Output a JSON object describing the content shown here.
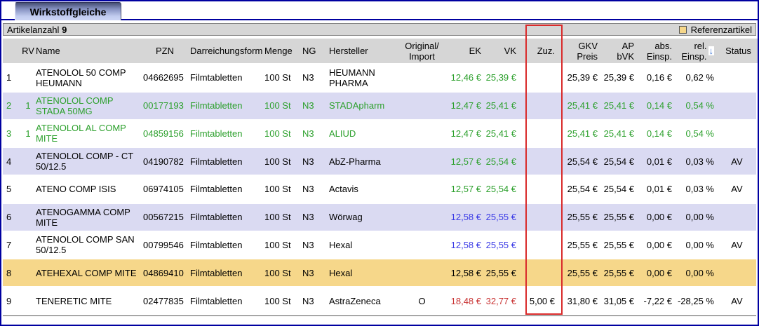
{
  "tab": {
    "label": "Wirkstoffgleiche"
  },
  "info_bar": {
    "article_count_label": "Artikelanzahl",
    "article_count": "9",
    "legend_label": "Referenzartikel",
    "legend_color": "#f6d78a"
  },
  "annotation": {
    "highlighted_column": "Zuz.",
    "color": "#d92b2b"
  },
  "colors": {
    "row_alt": "#dadaf2",
    "reference_row": "#f6d78a",
    "header_text": "#3a74d8",
    "green_text": "#2ca02c",
    "blue_text": "#3a3ae6",
    "red_text": "#c93434",
    "window_border": "#0000a0",
    "bar_bg": "#d6d6d6"
  },
  "table": {
    "columns": [
      {
        "key": "num",
        "label": "",
        "align": "al"
      },
      {
        "key": "rv",
        "label": "RV",
        "align": "ac"
      },
      {
        "key": "name",
        "label": "Name",
        "align": "al"
      },
      {
        "key": "pzn",
        "label": "PZN",
        "align": "ac"
      },
      {
        "key": "form",
        "label": "Darreichungsform",
        "align": "al"
      },
      {
        "key": "menge",
        "label": "Menge",
        "align": "al"
      },
      {
        "key": "ng",
        "label": "NG",
        "align": "al"
      },
      {
        "key": "hersteller",
        "label": "Hersteller",
        "align": "al"
      },
      {
        "key": "orig",
        "label": "Original/\nImport",
        "align": "ac"
      },
      {
        "key": "ek",
        "label": "EK",
        "align": "ar"
      },
      {
        "key": "vk",
        "label": "VK",
        "align": "ar"
      },
      {
        "key": "zuz",
        "label": "Zuz.",
        "align": "ar"
      },
      {
        "key": "gkv",
        "label": "GKV\nPreis",
        "align": "ar"
      },
      {
        "key": "ap",
        "label": "AP\nbVK",
        "align": "ar"
      },
      {
        "key": "abs",
        "label": "abs.\nEinsp.",
        "align": "ar"
      },
      {
        "key": "rel",
        "label": "rel.\nEinsp.",
        "align": "ar",
        "sort_indicator": "↓"
      },
      {
        "key": "status",
        "label": "Status",
        "align": "ac"
      }
    ],
    "data_align": {
      "num": "al pl5",
      "rv": "ac",
      "name": "al",
      "pzn": "al pl5",
      "form": "al",
      "menge": "al",
      "ng": "al",
      "hersteller": "al",
      "orig": "ac",
      "ek": "ar",
      "vk": "ar",
      "zuz": "ar",
      "gkv": "ar",
      "ap": "ar",
      "abs": "ar",
      "rel": "ar",
      "status": "ac"
    },
    "rows": [
      {
        "num": "1",
        "rv": "",
        "name": "ATENOLOL 50 COMP HEUMANN",
        "pzn": "04662695",
        "form": "Filmtabletten",
        "menge": "100 St",
        "ng": "N3",
        "hersteller": "HEUMANN PHARMA",
        "orig": "",
        "ek": "12,46 €",
        "vk": "25,39 €",
        "zuz": "",
        "gkv": "25,39 €",
        "ap": "25,39 €",
        "abs": "0,16 €",
        "rel": "0,62 %",
        "status": "",
        "bg": "white",
        "text_color": "black",
        "price_color": "green"
      },
      {
        "num": "2",
        "rv": "1",
        "name": "ATENOLOL COMP STADA 50MG",
        "pzn": "00177193",
        "form": "Filmtabletten",
        "menge": "100 St",
        "ng": "N3",
        "hersteller": "STADApharm",
        "orig": "",
        "ek": "12,47 €",
        "vk": "25,41 €",
        "zuz": "",
        "gkv": "25,41 €",
        "ap": "25,41 €",
        "abs": "0,14 €",
        "rel": "0,54 %",
        "status": "",
        "bg": "lavender",
        "text_color": "green",
        "price_color": "green"
      },
      {
        "num": "3",
        "rv": "1",
        "name": "ATENOLOL AL COMP MITE",
        "pzn": "04859156",
        "form": "Filmtabletten",
        "menge": "100 St",
        "ng": "N3",
        "hersteller": "ALIUD",
        "orig": "",
        "ek": "12,47 €",
        "vk": "25,41 €",
        "zuz": "",
        "gkv": "25,41 €",
        "ap": "25,41 €",
        "abs": "0,14 €",
        "rel": "0,54 %",
        "status": "",
        "bg": "white",
        "text_color": "green",
        "price_color": "green"
      },
      {
        "num": "4",
        "rv": "",
        "name": "ATENOLOL COMP - CT 50/12.5",
        "pzn": "04190782",
        "form": "Filmtabletten",
        "menge": "100 St",
        "ng": "N3",
        "hersteller": "AbZ-Pharma",
        "orig": "",
        "ek": "12,57 €",
        "vk": "25,54 €",
        "zuz": "",
        "gkv": "25,54 €",
        "ap": "25,54 €",
        "abs": "0,01 €",
        "rel": "0,03 %",
        "status": "AV",
        "bg": "lavender",
        "text_color": "black",
        "price_color": "green"
      },
      {
        "num": "5",
        "rv": "",
        "name": "ATENO COMP ISIS",
        "pzn": "06974105",
        "form": "Filmtabletten",
        "menge": "100 St",
        "ng": "N3",
        "hersteller": "Actavis",
        "orig": "",
        "ek": "12,57 €",
        "vk": "25,54 €",
        "zuz": "",
        "gkv": "25,54 €",
        "ap": "25,54 €",
        "abs": "0,01 €",
        "rel": "0,03 %",
        "status": "AV",
        "bg": "white",
        "text_color": "black",
        "price_color": "green"
      },
      {
        "num": "6",
        "rv": "",
        "name": "ATENOGAMMA COMP MITE",
        "pzn": "00567215",
        "form": "Filmtabletten",
        "menge": "100 St",
        "ng": "N3",
        "hersteller": "Wörwag",
        "orig": "",
        "ek": "12,58 €",
        "vk": "25,55 €",
        "zuz": "",
        "gkv": "25,55 €",
        "ap": "25,55 €",
        "abs": "0,00 €",
        "rel": "0,00 %",
        "status": "",
        "bg": "lavender",
        "text_color": "black",
        "price_color": "blue"
      },
      {
        "num": "7",
        "rv": "",
        "name": "ATENOLOL COMP SAN 50/12.5",
        "pzn": "00799546",
        "form": "Filmtabletten",
        "menge": "100 St",
        "ng": "N3",
        "hersteller": "Hexal",
        "orig": "",
        "ek": "12,58 €",
        "vk": "25,55 €",
        "zuz": "",
        "gkv": "25,55 €",
        "ap": "25,55 €",
        "abs": "0,00 €",
        "rel": "0,00 %",
        "status": "AV",
        "bg": "white",
        "text_color": "black",
        "price_color": "blue"
      },
      {
        "num": "8",
        "rv": "",
        "name": "ATEHEXAL COMP MITE",
        "pzn": "04869410",
        "form": "Filmtabletten",
        "menge": "100 St",
        "ng": "N3",
        "hersteller": "Hexal",
        "orig": "",
        "ek": "12,58 €",
        "vk": "25,55 €",
        "zuz": "",
        "gkv": "25,55 €",
        "ap": "25,55 €",
        "abs": "0,00 €",
        "rel": "0,00 %",
        "status": "",
        "bg": "yellow",
        "text_color": "black",
        "price_color": "black"
      },
      {
        "num": "9",
        "rv": "",
        "name": "TENERETIC MITE",
        "pzn": "02477835",
        "form": "Filmtabletten",
        "menge": "100 St",
        "ng": "N3",
        "hersteller": "AstraZeneca",
        "orig": "O",
        "ek": "18,48 €",
        "vk": "32,77 €",
        "zuz": "5,00 €",
        "gkv": "31,80 €",
        "ap": "31,05 €",
        "abs": "-7,22 €",
        "rel": "-28,25 %",
        "status": "AV",
        "bg": "white",
        "text_color": "black",
        "price_color": "red"
      }
    ]
  }
}
